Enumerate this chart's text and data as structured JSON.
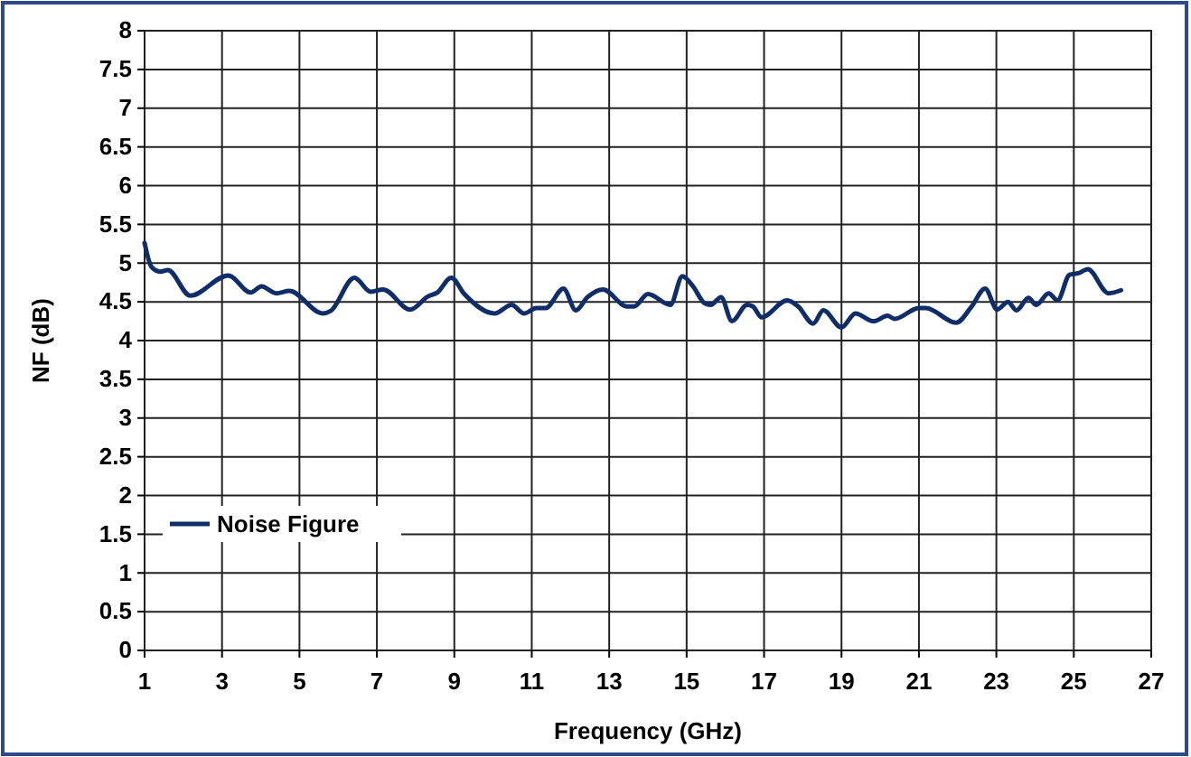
{
  "chart_data": {
    "type": "line",
    "xlabel": "Frequency (GHz)",
    "ylabel": "NF (dB)",
    "xlim": [
      1,
      27
    ],
    "xticks": [
      1,
      3,
      5,
      7,
      9,
      11,
      13,
      15,
      17,
      19,
      21,
      23,
      25,
      27
    ],
    "ylim": [
      0,
      8
    ],
    "yticks": [
      0,
      0.5,
      1,
      1.5,
      2,
      2.5,
      3,
      3.5,
      4,
      4.5,
      5,
      5.5,
      6,
      6.5,
      7,
      7.5,
      8
    ],
    "grid": true,
    "legend": "bottom left",
    "marker": "none",
    "line_style": "solid",
    "series": [
      {
        "name": "Noise Figure",
        "color": "#0f2d69",
        "x": [
          1.0,
          1.18,
          1.4,
          1.6,
          2.18,
          3.16,
          3.74,
          4.02,
          4.4,
          4.74,
          5.6,
          5.8,
          6.42,
          6.84,
          7.16,
          7.86,
          8.32,
          8.56,
          8.92,
          9.26,
          10.04,
          10.48,
          10.8,
          11.12,
          11.36,
          11.82,
          12.14,
          12.44,
          12.84,
          13.46,
          13.64,
          14.0,
          14.58,
          14.89,
          15.15,
          15.47,
          15.62,
          15.89,
          16.17,
          16.56,
          16.71,
          16.94,
          17.6,
          17.88,
          18.27,
          18.53,
          19.0,
          19.36,
          19.83,
          20.19,
          20.37,
          21.0,
          21.18,
          21.96,
          22.36,
          22.71,
          23.02,
          23.3,
          23.52,
          23.83,
          24.03,
          24.35,
          24.58,
          24.89,
          25.12,
          25.36,
          25.9,
          26.22
        ],
        "values": [
          5.26,
          4.95,
          4.89,
          4.91,
          4.58,
          4.84,
          4.62,
          4.7,
          4.61,
          4.64,
          4.35,
          4.38,
          4.81,
          4.63,
          4.66,
          4.4,
          4.57,
          4.62,
          4.81,
          4.6,
          4.35,
          4.46,
          4.35,
          4.42,
          4.42,
          4.67,
          4.39,
          4.56,
          4.66,
          4.44,
          4.44,
          4.6,
          4.46,
          4.83,
          4.71,
          4.48,
          4.46,
          4.56,
          4.25,
          4.46,
          4.44,
          4.3,
          4.52,
          4.44,
          4.22,
          4.39,
          4.17,
          4.35,
          4.25,
          4.32,
          4.28,
          4.42,
          4.42,
          4.23,
          4.44,
          4.67,
          4.4,
          4.5,
          4.39,
          4.55,
          4.46,
          4.61,
          4.52,
          4.85,
          4.87,
          4.92,
          4.61,
          4.65
        ]
      }
    ]
  }
}
